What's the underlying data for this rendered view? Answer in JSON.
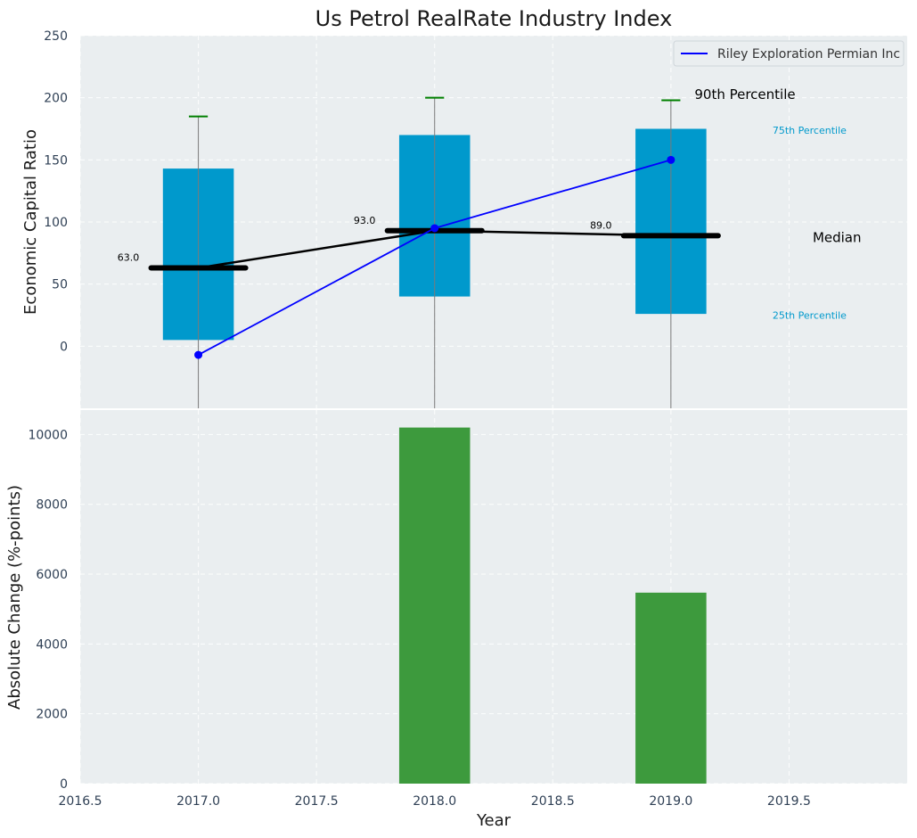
{
  "chart_data": {
    "title": "Us Petrol RealRate Industry Index",
    "xlabel": "Year",
    "x_ticks": [
      2016.5,
      2017.0,
      2017.5,
      2018.0,
      2018.5,
      2019.0,
      2019.5
    ],
    "x_tick_labels": [
      "2016.5",
      "2017.0",
      "2017.5",
      "2018.0",
      "2018.5",
      "2019.0",
      "2019.5"
    ],
    "xlim": [
      2016.5,
      2020.0
    ],
    "top": {
      "type": "box",
      "ylabel": "Economic Capital Ratio",
      "ylim": [
        -50,
        250
      ],
      "y_ticks": [
        0,
        50,
        100,
        150,
        200,
        250
      ],
      "y_tick_labels": [
        "0",
        "50",
        "100",
        "150",
        "200",
        "250"
      ],
      "grid": true,
      "box_color": "#0099cc",
      "median_color": "#000000",
      "p90_color": "#008000",
      "years": [
        2017,
        2018,
        2019
      ],
      "p25": [
        5,
        40,
        26
      ],
      "p75": [
        143,
        170,
        175
      ],
      "median": [
        63.0,
        93.0,
        89.0
      ],
      "median_labels": [
        "63.0",
        "93.0",
        "89.0"
      ],
      "p90": [
        185,
        200,
        198
      ],
      "company": {
        "name": "Riley Exploration Permian Inc",
        "color": "#0000ff",
        "values": [
          -7,
          95,
          150
        ]
      },
      "annotations": {
        "p90": "90th Percentile",
        "p75": "75th Percentile",
        "median": "Median",
        "p25": "25th Percentile"
      },
      "legend_position": "top-right"
    },
    "bottom": {
      "type": "bar",
      "ylabel": "Absolute Change (%-points)",
      "ylim": [
        0,
        10700
      ],
      "y_ticks": [
        0,
        2000,
        4000,
        6000,
        8000,
        10000
      ],
      "y_tick_labels": [
        "0",
        "2000",
        "4000",
        "6000",
        "8000",
        "10000"
      ],
      "grid": true,
      "bar_color": "#3d9a3d",
      "years": [
        2018,
        2019
      ],
      "values": [
        10200,
        5470
      ]
    }
  }
}
